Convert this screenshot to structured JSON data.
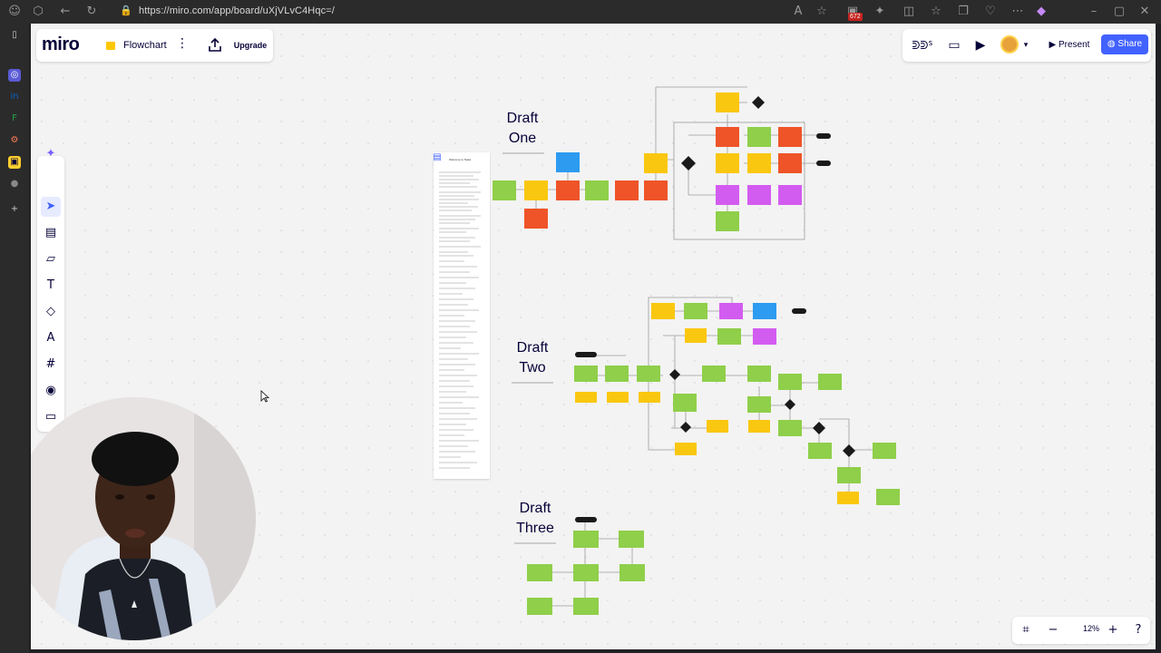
{
  "browser": {
    "url": "https://miro.com/app/board/uXjVLvC4Hqc=/",
    "notification_count": "672"
  },
  "app": {
    "logo": "miro",
    "board_name": "Flowchart",
    "upgrade_label": "Upgrade",
    "present_label": "Present",
    "share_label": "Share",
    "reactions_label": "ᕲᕲᔆ",
    "zoom_level": "12%"
  },
  "toolbar": {
    "tools": [
      {
        "name": "ai-sparkle-icon",
        "glyph": "✦"
      },
      {
        "name": "select-tool-icon",
        "glyph": "➤"
      },
      {
        "name": "templates-icon",
        "glyph": "▤"
      },
      {
        "name": "sticky-note-icon",
        "glyph": "▱"
      },
      {
        "name": "text-tool-icon",
        "glyph": "T"
      },
      {
        "name": "shapes-icon",
        "glyph": "◇"
      },
      {
        "name": "pen-tool-icon",
        "glyph": "A"
      },
      {
        "name": "frame-tool-icon",
        "glyph": "#"
      },
      {
        "name": "apps-icon",
        "glyph": "◉"
      },
      {
        "name": "comment-icon",
        "glyph": "▭"
      }
    ]
  },
  "board": {
    "drafts": [
      {
        "line1": "Draft",
        "line2": "One"
      },
      {
        "line1": "Draft",
        "line2": "Two"
      },
      {
        "line1": "Draft",
        "line2": "Three"
      }
    ],
    "doc_title": "Welcome to Tasks"
  },
  "colors": {
    "green": "#8fcf4a",
    "yellow": "#fac710",
    "red": "#ef5428",
    "blue": "#2d9bf0",
    "purple": "#d35cf0",
    "black": "#1a1a1a",
    "accent": "#4262ff"
  }
}
